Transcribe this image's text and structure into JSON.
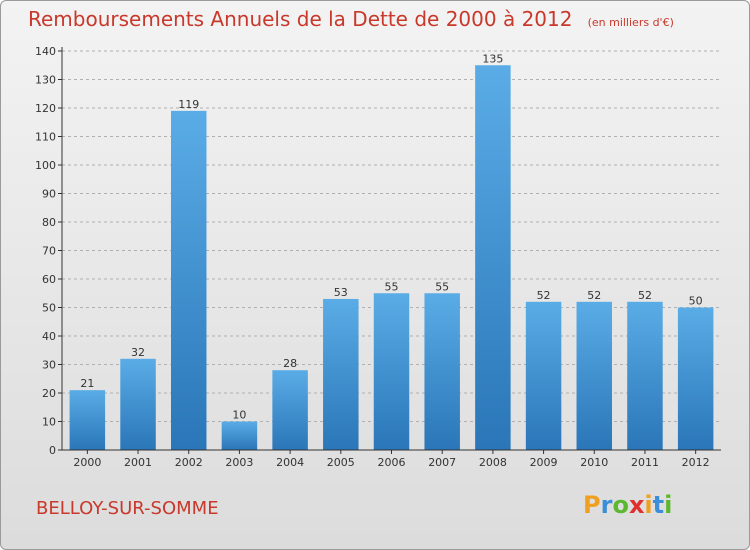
{
  "header": {
    "title": "Remboursements Annuels de la Dette de 2000 à 2012",
    "unit": "(en milliers d'€)"
  },
  "footer": {
    "town": "BELLOY-SUR-SOMME",
    "logo_letters": [
      "P",
      "r",
      "o",
      "x",
      "i",
      "t",
      "i"
    ],
    "logo_colors": [
      "#f0a020",
      "#3a8fd8",
      "#5cb82e",
      "#e03030",
      "#f0a020",
      "#3a8fd8",
      "#5cb82e"
    ]
  },
  "colors": {
    "bar_top": "#5aace6",
    "bar_bottom": "#2a76b8",
    "text": "#c8382b",
    "axis": "#333333",
    "grid": "#b0b0b0"
  },
  "chart_data": {
    "type": "bar",
    "title": "Remboursements Annuels de la Dette de 2000 à 2012",
    "subtitle": "(en milliers d'€)",
    "categories": [
      "2000",
      "2001",
      "2002",
      "2003",
      "2004",
      "2005",
      "2006",
      "2007",
      "2008",
      "2009",
      "2010",
      "2011",
      "2012"
    ],
    "values": [
      21,
      32,
      119,
      10,
      28,
      53,
      55,
      55,
      135,
      52,
      52,
      52,
      50
    ],
    "ylim": [
      0,
      140
    ],
    "yticks": [
      0,
      10,
      20,
      30,
      40,
      50,
      60,
      70,
      80,
      90,
      100,
      110,
      120,
      130,
      140
    ],
    "grid": true,
    "xlabel": "",
    "ylabel": ""
  }
}
